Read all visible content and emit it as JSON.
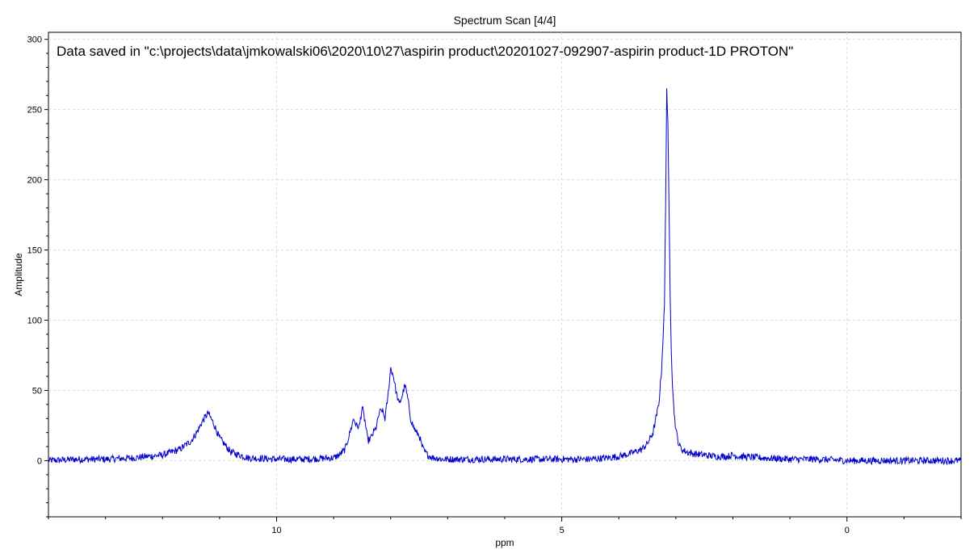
{
  "chart_data": {
    "type": "line",
    "title": "Spectrum Scan [4/4]",
    "annotation": "Data saved in \"c:\\projects\\data\\jmkowalski06\\2020\\10\\27\\aspirin product\\20201027-092907-aspirin product-1D PROTON\"",
    "xlabel": "ppm",
    "ylabel": "Amplitude",
    "xlim": [
      14.0,
      -2.0
    ],
    "ylim": [
      -40,
      305
    ],
    "x_reversed": true,
    "grid": true,
    "legend": "none",
    "x_ticks": [
      10,
      5,
      0
    ],
    "x_tick_labels": [
      "10",
      "5",
      "0"
    ],
    "y_ticks": [
      0,
      50,
      100,
      150,
      200,
      250,
      300
    ],
    "y_tick_labels": [
      "0",
      "50",
      "100",
      "150",
      "200",
      "250",
      "300"
    ],
    "series": [
      {
        "color": "#0000cc",
        "x": [
          14.0,
          13.5,
          13.0,
          12.5,
          12.0,
          11.7,
          11.5,
          11.4,
          11.3,
          11.2,
          11.1,
          11.0,
          10.8,
          10.5,
          10.0,
          9.5,
          9.0,
          8.9,
          8.8,
          8.75,
          8.7,
          8.65,
          8.6,
          8.55,
          8.5,
          8.45,
          8.4,
          8.35,
          8.3,
          8.25,
          8.2,
          8.15,
          8.1,
          8.05,
          8.0,
          7.95,
          7.9,
          7.85,
          7.8,
          7.75,
          7.7,
          7.65,
          7.6,
          7.55,
          7.5,
          7.45,
          7.4,
          7.35,
          7.3,
          7.25,
          7.2,
          7.1,
          7.0,
          6.5,
          6.0,
          5.5,
          5.0,
          4.5,
          4.2,
          4.0,
          3.8,
          3.6,
          3.5,
          3.4,
          3.3,
          3.25,
          3.2,
          3.18,
          3.16,
          3.14,
          3.12,
          3.1,
          3.08,
          3.06,
          3.04,
          3.02,
          3.0,
          2.98,
          2.95,
          2.9,
          2.8,
          2.7,
          2.5,
          2.3,
          2.1,
          2.0,
          1.9,
          1.5,
          1.0,
          0.5,
          0.0,
          -0.5,
          -1.0,
          -1.5,
          -2.0
        ],
        "y": [
          0,
          1,
          1,
          2,
          4,
          8,
          14,
          20,
          28,
          34,
          26,
          16,
          6,
          2,
          1,
          1,
          2,
          4,
          8,
          15,
          22,
          30,
          25,
          24,
          38,
          28,
          14,
          16,
          20,
          24,
          34,
          36,
          30,
          45,
          66,
          60,
          48,
          40,
          46,
          54,
          44,
          30,
          24,
          20,
          18,
          10,
          6,
          4,
          3,
          2,
          2,
          1,
          1,
          1,
          1,
          1,
          1,
          1,
          2,
          3,
          5,
          8,
          12,
          20,
          40,
          65,
          110,
          180,
          265,
          240,
          180,
          120,
          80,
          55,
          40,
          30,
          22,
          18,
          12,
          8,
          6,
          5,
          4,
          3,
          3,
          4,
          3,
          2,
          1,
          1,
          0,
          0,
          0,
          0,
          0
        ]
      }
    ]
  }
}
